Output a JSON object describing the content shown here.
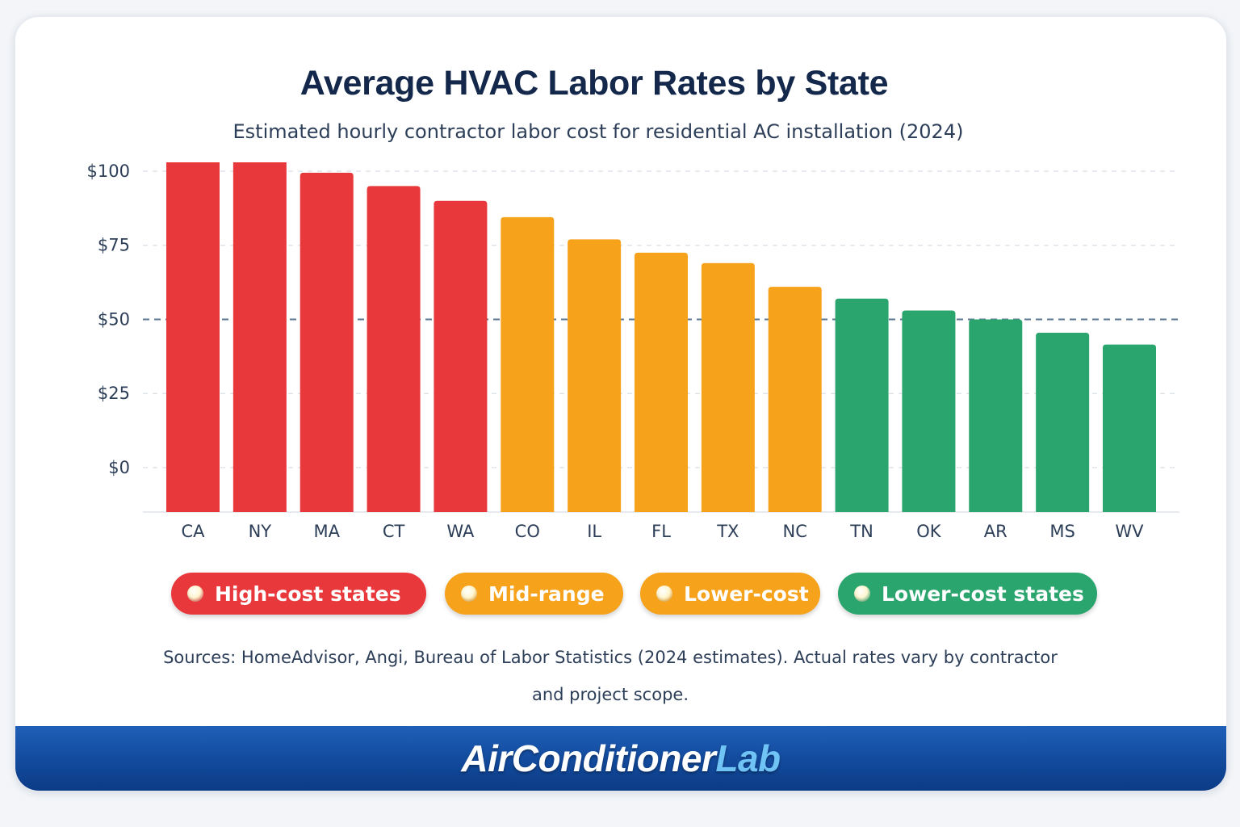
{
  "colors": {
    "high": "#e8383b",
    "mid": "#f7a21b",
    "low": "#2aa56e",
    "gridline": "#dfe4ea",
    "reference_line": "#5b7794"
  },
  "chart_data": {
    "type": "bar",
    "title": "Average HVAC Labor Rates by State",
    "subtitle": "Estimated hourly contractor labor cost for residential AC installation (2024)",
    "xlabel": "",
    "ylabel": "",
    "categories": [
      "CA",
      "NY",
      "MA",
      "CT",
      "WA",
      "CO",
      "IL",
      "FL",
      "TX",
      "NC",
      "TN",
      "OK",
      "AR",
      "MS",
      "WV"
    ],
    "values": [
      109,
      104,
      99.5,
      95,
      90,
      84.5,
      77,
      72.5,
      69,
      61,
      57,
      53,
      50,
      45.5,
      41.5
    ],
    "bar_groups": [
      "high",
      "high",
      "high",
      "high",
      "high",
      "mid",
      "mid",
      "mid",
      "mid",
      "mid",
      "low",
      "low",
      "low",
      "low",
      "low"
    ],
    "y_ticks": [
      "$100",
      "$75",
      "$50",
      "$25",
      "$0"
    ],
    "y_tick_values": [
      100,
      75,
      50,
      25,
      0
    ],
    "ylim": [
      -15,
      100
    ],
    "reference_line": 50,
    "grid": true,
    "legend_position": "bottom"
  },
  "legend": [
    {
      "label": "High-cost states",
      "group": "high"
    },
    {
      "label": "Mid-range",
      "group": "mid"
    },
    {
      "label": "Lower-cost",
      "group": "mid"
    },
    {
      "label": "Lower-cost states",
      "group": "low"
    }
  ],
  "source_line1": "Sources: HomeAdvisor, Angi, Bureau of Labor Statistics (2024 estimates). Actual rates vary by contractor",
  "source_line2": "and project scope.",
  "brand": {
    "part1": "AirConditioner",
    "part2": "Lab"
  }
}
